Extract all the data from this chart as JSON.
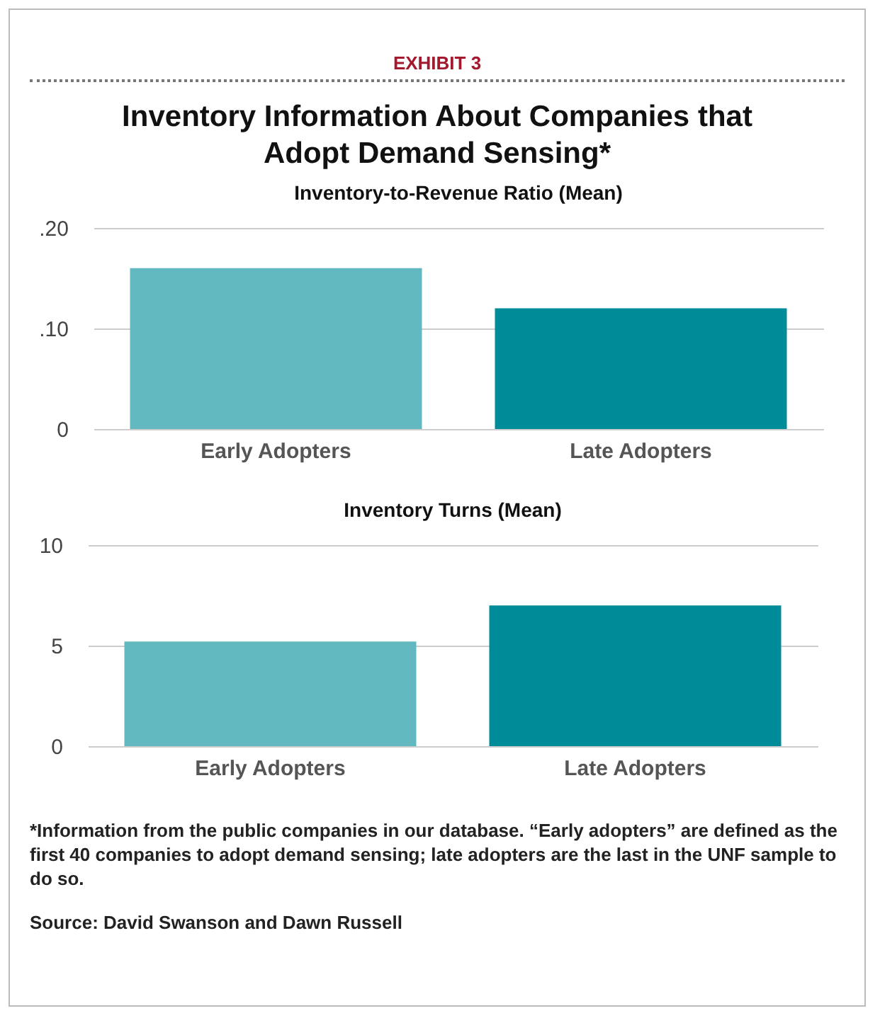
{
  "chart_data": [
    {
      "type": "other",
      "annotations": [
        "EXHIBIT 3"
      ],
      "title": "Inventory Information About Companies that Adopt Demand Sensing*"
    },
    {
      "type": "bar",
      "title": "Inventory-to-Revenue Ratio (Mean)",
      "categories": [
        "Early Adopters",
        "Late Adopters"
      ],
      "values": [
        0.16,
        0.12
      ],
      "colors": [
        "#62b8bf",
        "#008b99"
      ],
      "ylim": [
        0,
        0.2
      ],
      "yticks": [
        {
          "value": 0,
          "label": "0"
        },
        {
          "value": 0.1,
          "label": ".10"
        },
        {
          "value": 0.2,
          "label": ".20"
        }
      ],
      "grid": "y"
    },
    {
      "type": "bar",
      "title": "Inventory Turns (Mean)",
      "categories": [
        "Early Adopters",
        "Late Adopters"
      ],
      "values": [
        5.2,
        7.0
      ],
      "colors": [
        "#62b8bf",
        "#008b99"
      ],
      "ylim": [
        0,
        10
      ],
      "yticks": [
        0,
        5,
        10
      ],
      "grid": "y",
      "annotations": [
        "*Information from the public companies in our database. “Early adopters” are defined as the first 40 companies to adopt demand sensing; late adopters are the last in the UNF sample to do so.",
        "Source: David Swanson and Dawn Russell"
      ]
    }
  ]
}
